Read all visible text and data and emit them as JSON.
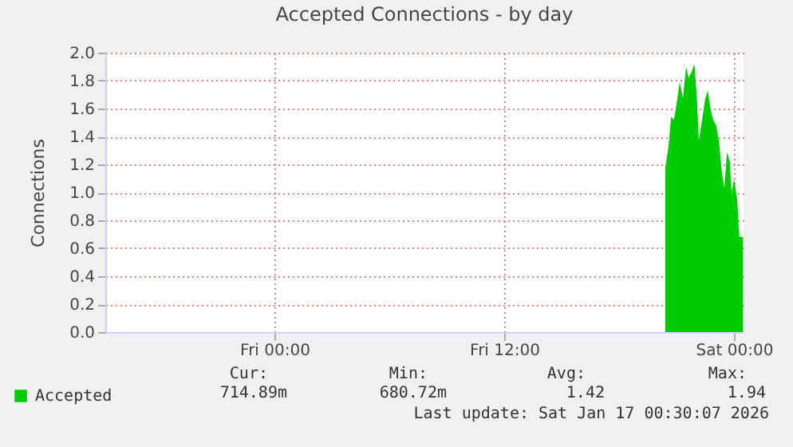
{
  "chart_data": {
    "type": "area",
    "title": "Accepted Connections - by day",
    "ylabel": "Connections",
    "x": [
      "2026-01-16T20:25",
      "2026-01-16T20:35",
      "2026-01-16T20:43",
      "2026-01-16T20:52",
      "2026-01-16T21:00",
      "2026-01-16T21:10",
      "2026-01-16T21:20",
      "2026-01-16T21:30",
      "2026-01-16T21:38",
      "2026-01-16T21:47",
      "2026-01-16T21:56",
      "2026-01-16T22:04",
      "2026-01-16T22:10",
      "2026-01-16T22:20",
      "2026-01-16T22:30",
      "2026-01-16T22:38",
      "2026-01-16T22:47",
      "2026-01-16T22:55",
      "2026-01-16T23:04",
      "2026-01-16T23:13",
      "2026-01-16T23:22",
      "2026-01-16T23:30",
      "2026-01-16T23:38",
      "2026-01-16T23:47",
      "2026-01-16T23:53",
      "2026-01-17T00:00",
      "2026-01-17T00:10",
      "2026-01-17T00:17",
      "2026-01-17T00:28"
    ],
    "series": [
      {
        "name": "Accepted",
        "color": "#00cc00",
        "values": [
          1.18,
          1.33,
          1.54,
          1.52,
          1.63,
          1.79,
          1.67,
          1.9,
          1.82,
          1.86,
          1.92,
          1.67,
          1.37,
          1.52,
          1.67,
          1.73,
          1.59,
          1.52,
          1.48,
          1.37,
          1.14,
          1.03,
          1.29,
          1.22,
          0.99,
          1.1,
          0.95,
          0.68,
          0.68
        ]
      }
    ],
    "xlim": [
      "2026-01-15T15:10",
      "2026-01-17T00:30"
    ],
    "xticks": [
      {
        "value": "2026-01-16T00:00",
        "label": "Fri 00:00"
      },
      {
        "value": "2026-01-16T12:00",
        "label": "Fri 12:00"
      },
      {
        "value": "2026-01-17T00:00",
        "label": "Sat 00:00"
      }
    ],
    "ylim": [
      0,
      2
    ],
    "yticks": [
      {
        "value": 0,
        "label": "0.0"
      },
      0.2,
      0.4,
      0.6,
      0.8,
      {
        "value": 1,
        "label": "1.0"
      },
      1.2,
      1.4,
      1.6,
      1.8,
      {
        "value": 2,
        "label": "2.0"
      }
    ],
    "grid": true,
    "legend": "bottom left",
    "annotations": [
      "Cur:",
      "Min:",
      "Avg:",
      "Max:",
      "714.89m",
      "680.72m",
      "1.42",
      "1.94",
      "Last update: Sat Jan 17 00:30:07 2026"
    ]
  }
}
